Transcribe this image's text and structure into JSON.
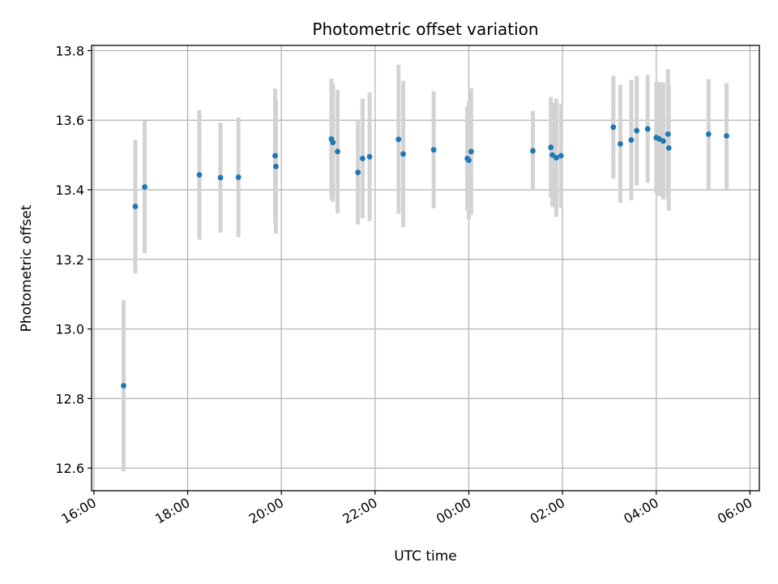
{
  "chart_data": {
    "type": "scatter",
    "title": "Photometric offset variation",
    "xlabel": "UTC time",
    "ylabel": "Photometric offset",
    "x_ticks": [
      "16:00",
      "18:00",
      "20:00",
      "22:00",
      "00:00",
      "02:00",
      "04:00",
      "06:00"
    ],
    "y_ticks": [
      "12.6",
      "12.8",
      "13.0",
      "13.2",
      "13.4",
      "13.6",
      "13.8"
    ],
    "xlim_hours": [
      15.95,
      30.2
    ],
    "ylim": [
      12.535,
      13.815
    ],
    "grid": true,
    "point_color": "#1f77b4",
    "errorbar_color": "#d3d3d3",
    "points": [
      {
        "t": "16:38",
        "y": 12.837,
        "err": 0.246
      },
      {
        "t": "16:53",
        "y": 13.352,
        "err": 0.192
      },
      {
        "t": "17:05",
        "y": 13.408,
        "err": 0.19
      },
      {
        "t": "18:15",
        "y": 13.443,
        "err": 0.186
      },
      {
        "t": "18:42",
        "y": 13.435,
        "err": 0.158
      },
      {
        "t": "19:05",
        "y": 13.436,
        "err": 0.172
      },
      {
        "t": "19:52",
        "y": 13.498,
        "err": 0.193
      },
      {
        "t": "19:53",
        "y": 13.467,
        "err": 0.193
      },
      {
        "t": "21:04",
        "y": 13.546,
        "err": 0.173
      },
      {
        "t": "21:06",
        "y": 13.536,
        "err": 0.17
      },
      {
        "t": "21:12",
        "y": 13.51,
        "err": 0.178
      },
      {
        "t": "21:38",
        "y": 13.45,
        "err": 0.15
      },
      {
        "t": "21:44",
        "y": 13.49,
        "err": 0.172
      },
      {
        "t": "21:53",
        "y": 13.495,
        "err": 0.185
      },
      {
        "t": "22:30",
        "y": 13.545,
        "err": 0.214
      },
      {
        "t": "22:36",
        "y": 13.503,
        "err": 0.21
      },
      {
        "t": "23:15",
        "y": 13.515,
        "err": 0.168
      },
      {
        "t": "23:58",
        "y": 13.49,
        "err": 0.15
      },
      {
        "t": "00:00",
        "y": 13.485,
        "err": 0.17
      },
      {
        "t": "00:03",
        "y": 13.51,
        "err": 0.182
      },
      {
        "t": "01:22",
        "y": 13.512,
        "err": 0.115
      },
      {
        "t": "01:45",
        "y": 13.522,
        "err": 0.145
      },
      {
        "t": "01:47",
        "y": 13.5,
        "err": 0.15
      },
      {
        "t": "01:52",
        "y": 13.492,
        "err": 0.17
      },
      {
        "t": "01:58",
        "y": 13.498,
        "err": 0.15
      },
      {
        "t": "03:05",
        "y": 13.58,
        "err": 0.148
      },
      {
        "t": "03:14",
        "y": 13.532,
        "err": 0.17
      },
      {
        "t": "03:28",
        "y": 13.543,
        "err": 0.173
      },
      {
        "t": "03:35",
        "y": 13.57,
        "err": 0.158
      },
      {
        "t": "03:49",
        "y": 13.575,
        "err": 0.155
      },
      {
        "t": "04:00",
        "y": 13.55,
        "err": 0.16
      },
      {
        "t": "04:04",
        "y": 13.546,
        "err": 0.164
      },
      {
        "t": "04:09",
        "y": 13.54,
        "err": 0.168
      },
      {
        "t": "04:15",
        "y": 13.56,
        "err": 0.187
      },
      {
        "t": "04:16",
        "y": 13.52,
        "err": 0.18
      },
      {
        "t": "05:07",
        "y": 13.56,
        "err": 0.158
      },
      {
        "t": "05:30",
        "y": 13.555,
        "err": 0.152
      }
    ]
  }
}
